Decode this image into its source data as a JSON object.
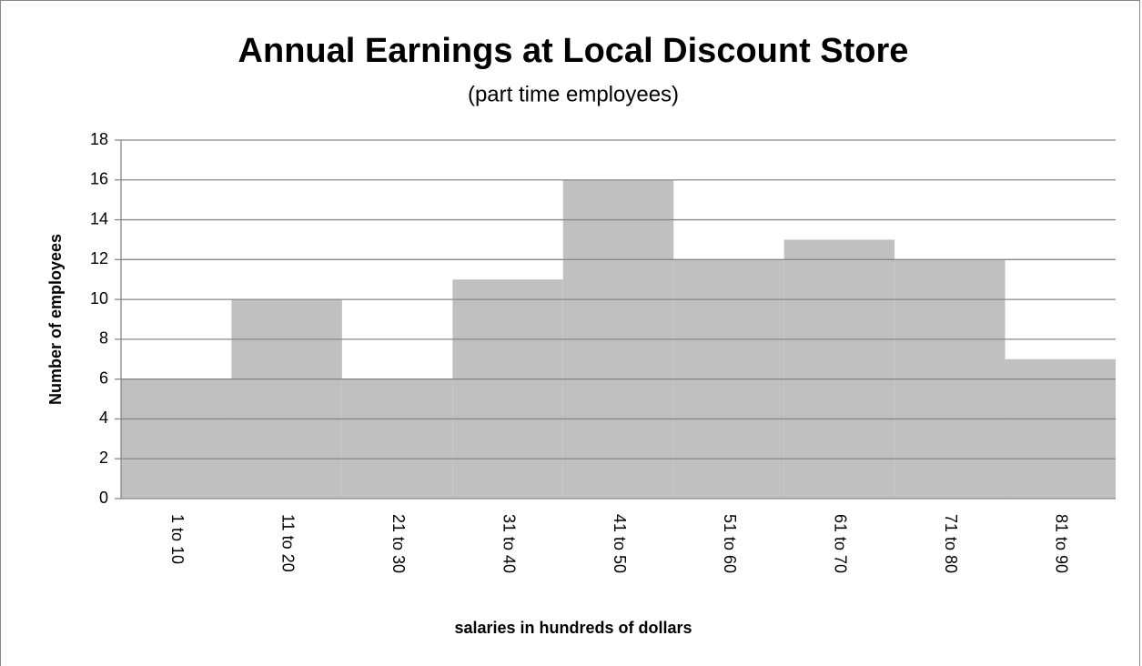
{
  "chart_data": {
    "type": "bar",
    "title": "Annual Earnings at Local Discount Store",
    "subtitle": "(part time employees)",
    "x_label": "salaries in hundreds of dollars",
    "y_label": "Number of employees",
    "categories": [
      "1 to 10",
      "11 to 20",
      "21 to 30",
      "31 to 40",
      "41 to 50",
      "51 to 60",
      "61 to 70",
      "71 to 80",
      "81 to 90"
    ],
    "values": [
      6,
      10,
      6,
      11,
      16,
      12,
      13,
      12,
      7
    ],
    "color": "#c0c0c0",
    "ylim": [
      0,
      18
    ],
    "yticks": [
      0,
      2,
      4,
      6,
      8,
      10,
      12,
      14,
      16,
      18
    ],
    "grid": true
  }
}
